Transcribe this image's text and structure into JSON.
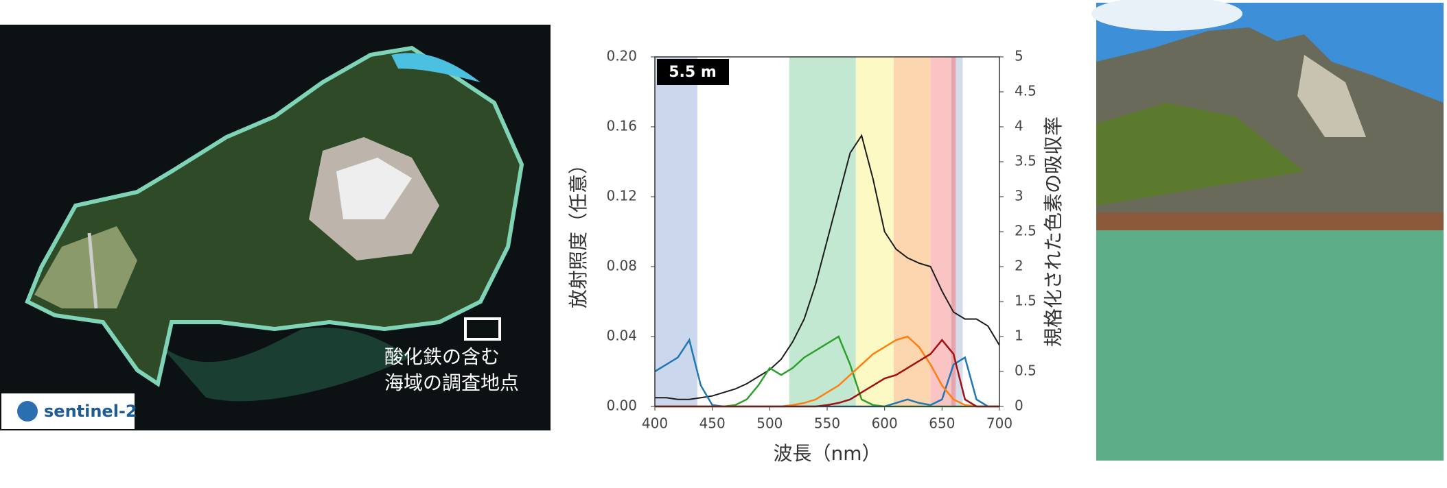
{
  "satellite": {
    "annotation": [
      "酸化鉄の含む",
      "海域の調査地点"
    ],
    "logo": "sentinel-2"
  },
  "chart_data": {
    "type": "line",
    "label": "5.5 m",
    "xlabel": "波長（nm）",
    "ylabel": "放射照度（任意）",
    "y2label": "規格化された色素の吸収率",
    "xlim": [
      400,
      700
    ],
    "xticks": [
      400,
      450,
      500,
      550,
      600,
      650,
      700
    ],
    "ylim": [
      0,
      0.2
    ],
    "yticks": [
      {
        "value": 0,
        "label": "0.00"
      },
      {
        "value": 0.04,
        "label": "0.04"
      },
      {
        "value": 0.08,
        "label": "0.08"
      },
      {
        "value": 0.12,
        "label": "0.12"
      },
      {
        "value": 0.16,
        "label": "0.16"
      },
      {
        "value": 0.2,
        "label": "0.20"
      }
    ],
    "y2lim": [
      0,
      5
    ],
    "y2ticks": [
      0,
      0.5,
      1,
      1.5,
      2,
      2.5,
      3,
      3.5,
      4,
      4.5,
      5
    ],
    "bands": [
      {
        "range": [
          400,
          437
        ],
        "color": "#cbd7ec"
      },
      {
        "range": [
          517,
          575
        ],
        "color": "#c3e8d2"
      },
      {
        "range": [
          575,
          608
        ],
        "color": "#fdf9c4"
      },
      {
        "range": [
          608,
          640
        ],
        "color": "#fcd6ae"
      },
      {
        "range": [
          640,
          658
        ],
        "color": "#fac4c4"
      },
      {
        "range": [
          658,
          662
        ],
        "color": "#e8a4ac"
      },
      {
        "range": [
          662,
          668
        ],
        "color": "#d2dcea"
      }
    ],
    "x": [
      400,
      410,
      420,
      430,
      440,
      450,
      460,
      470,
      480,
      490,
      500,
      510,
      520,
      530,
      540,
      550,
      560,
      570,
      580,
      590,
      600,
      610,
      620,
      630,
      640,
      650,
      660,
      670,
      680,
      690,
      700
    ],
    "series": [
      {
        "color": "#1a1a1a",
        "values": [
          0.005,
          0.005,
          0.004,
          0.004,
          0.005,
          0.006,
          0.008,
          0.01,
          0.013,
          0.017,
          0.021,
          0.027,
          0.037,
          0.05,
          0.07,
          0.095,
          0.12,
          0.145,
          0.155,
          0.13,
          0.1,
          0.09,
          0.085,
          0.082,
          0.08,
          0.066,
          0.054,
          0.05,
          0.05,
          0.046,
          0.035
        ]
      },
      {
        "color": "#1f77b4",
        "axis": "y2",
        "values": [
          0.5,
          0.6,
          0.7,
          0.95,
          0.3,
          0.02,
          0,
          0,
          0,
          0,
          0,
          0,
          0,
          0,
          0,
          0,
          0,
          0,
          0,
          0,
          0,
          0.05,
          0.1,
          0.05,
          0.02,
          0.1,
          0.6,
          0.7,
          0.1,
          0,
          0
        ]
      },
      {
        "color": "#2ca02c",
        "axis": "y2",
        "values": [
          0,
          0,
          0,
          0,
          0,
          0,
          0,
          0.02,
          0.1,
          0.3,
          0.55,
          0.45,
          0.55,
          0.7,
          0.8,
          0.9,
          1.0,
          0.6,
          0.1,
          0.02,
          0,
          0,
          0,
          0,
          0,
          0,
          0,
          0,
          0,
          0,
          0
        ]
      },
      {
        "color": "#ff7f0e",
        "axis": "y2",
        "values": [
          0,
          0,
          0,
          0,
          0,
          0,
          0,
          0,
          0,
          0,
          0,
          0,
          0.02,
          0.05,
          0.1,
          0.2,
          0.3,
          0.45,
          0.6,
          0.75,
          0.85,
          0.95,
          1.0,
          0.85,
          0.6,
          0.3,
          0.1,
          0.02,
          0,
          0,
          0
        ]
      },
      {
        "color": "#a01010",
        "axis": "y2",
        "values": [
          0,
          0,
          0,
          0,
          0,
          0,
          0,
          0,
          0,
          0,
          0,
          0,
          0,
          0,
          0,
          0.02,
          0.05,
          0.1,
          0.2,
          0.3,
          0.4,
          0.45,
          0.55,
          0.65,
          0.75,
          0.95,
          0.75,
          0.1,
          0,
          0,
          0
        ]
      }
    ]
  }
}
